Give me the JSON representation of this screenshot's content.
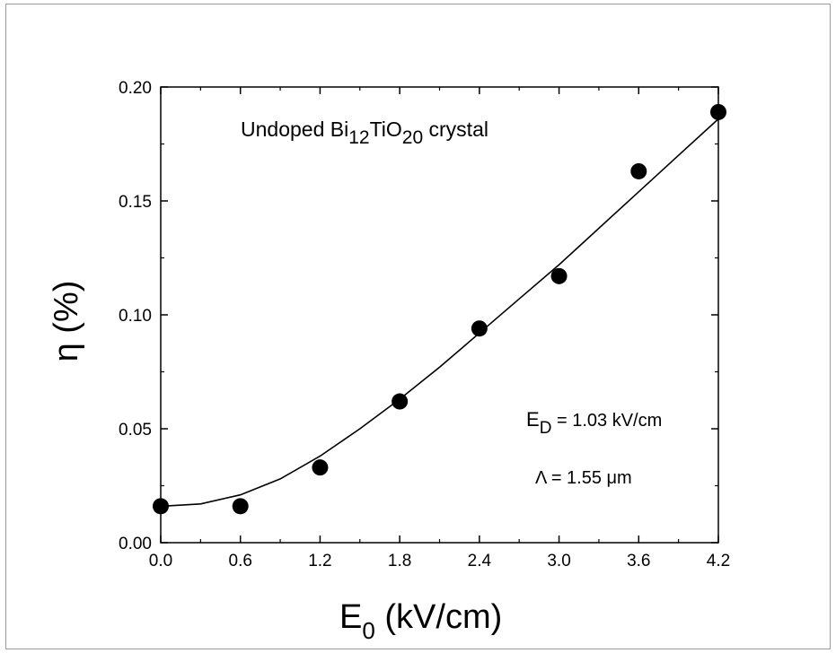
{
  "chart_data": {
    "type": "scatter",
    "title": "",
    "xlabel": {
      "main": "E",
      "sub": "0",
      "rest": " (kV/cm)"
    },
    "ylabel": "η (%)",
    "xlim": [
      0.0,
      4.2
    ],
    "ylim": [
      0.0,
      0.2
    ],
    "xticks": [
      "0.0",
      "0.6",
      "1.2",
      "1.8",
      "2.4",
      "3.0",
      "3.6",
      "4.2"
    ],
    "yticks": [
      "0.00",
      "0.05",
      "0.10",
      "0.15",
      "0.20"
    ],
    "grid": false,
    "series": [
      {
        "kind": "points",
        "x": [
          0.0,
          0.6,
          1.2,
          1.8,
          2.4,
          3.0,
          3.6,
          4.2
        ],
        "y": [
          0.016,
          0.016,
          0.033,
          0.062,
          0.094,
          0.117,
          0.163,
          0.189
        ]
      },
      {
        "kind": "fit-line",
        "x": [
          0.0,
          0.3,
          0.6,
          0.9,
          1.2,
          1.5,
          1.8,
          2.1,
          2.4,
          2.7,
          3.0,
          3.3,
          3.6,
          3.9,
          4.2
        ],
        "y": [
          0.016,
          0.017,
          0.021,
          0.028,
          0.038,
          0.05,
          0.063,
          0.077,
          0.092,
          0.107,
          0.122,
          0.138,
          0.154,
          0.17,
          0.186
        ]
      }
    ],
    "annotations": {
      "crystal": {
        "pre": "Undoped Bi",
        "sub1": "12",
        "mid": "TiO",
        "sub2": "20",
        "post": " crystal"
      },
      "ed": {
        "main": "E",
        "sub": "D",
        "rest": " = 1.03 kV/cm"
      },
      "lambda": {
        "text": "Λ = 1.55 μm"
      }
    }
  }
}
